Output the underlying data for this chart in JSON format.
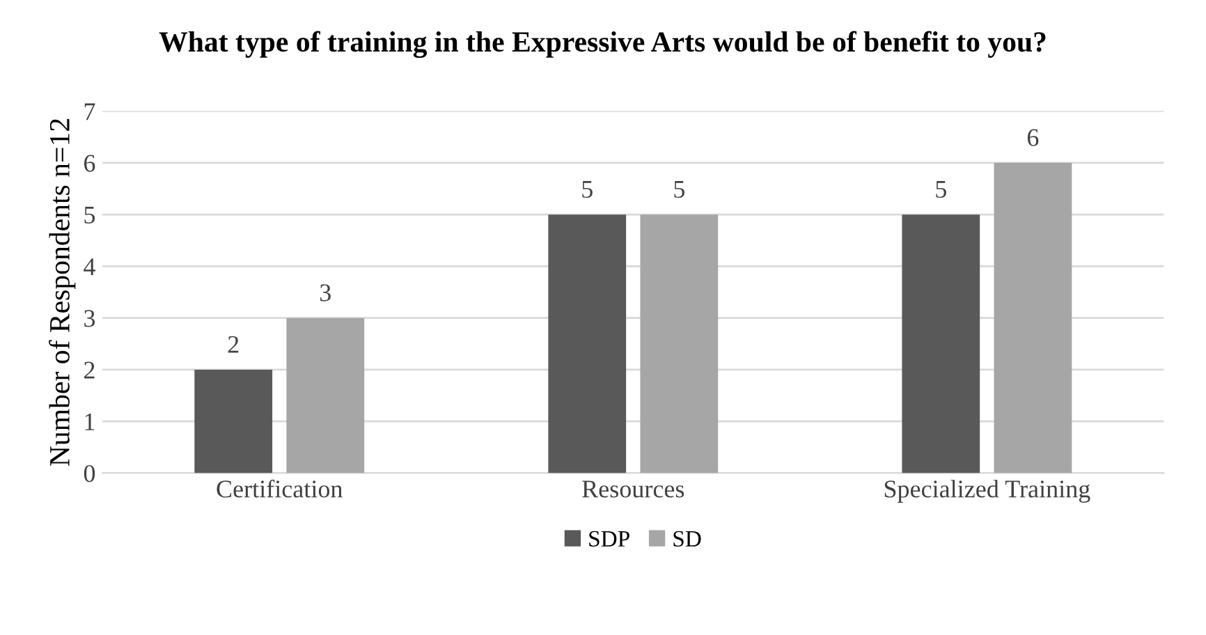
{
  "chart_data": {
    "type": "bar",
    "title": "What type of training in the Expressive Arts would be of benefit to you?",
    "ylabel": "Number of Respondents n=12",
    "categories": [
      "Certification",
      "Resources",
      "Specialized Training"
    ],
    "series": [
      {
        "name": "SDP",
        "color": "#595959",
        "values": [
          2,
          5,
          5
        ]
      },
      {
        "name": "SD",
        "color": "#a6a6a6",
        "values": [
          3,
          5,
          6
        ]
      }
    ],
    "ylim": [
      0,
      7
    ],
    "yticks": [
      0,
      1,
      2,
      3,
      4,
      5,
      6,
      7
    ],
    "grid": "y",
    "legend": "bottom",
    "data_labels": true
  }
}
